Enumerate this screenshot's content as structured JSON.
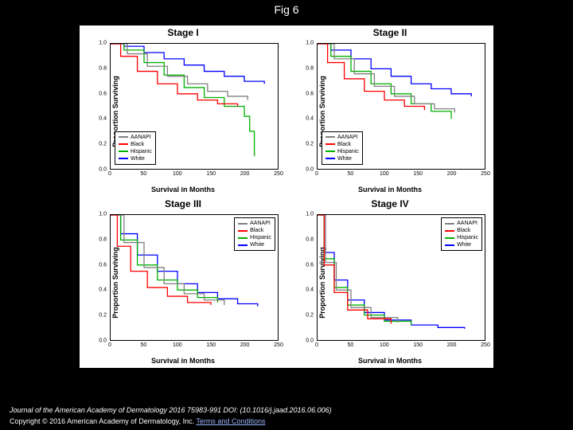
{
  "figure_label": "Fig 6",
  "background_color": "#000000",
  "panel_background": "#ffffff",
  "citation": "Journal of the American Academy of Dermatology 2016 75983-991 DOI: (10.1016/j.jaad.2016.06.006)",
  "copyright_prefix": "Copyright © 2016 American Academy of Dermatology, Inc. ",
  "terms_link_text": "Terms and Conditions",
  "axis": {
    "x_label": "Survival in Months",
    "y_label": "Proportion Surviving",
    "xlim": [
      0,
      250
    ],
    "ylim": [
      0.0,
      1.0
    ],
    "xticks": [
      0,
      50,
      100,
      150,
      200,
      250
    ],
    "yticks": [
      0.0,
      0.2,
      0.4,
      0.6,
      0.8,
      1.0
    ],
    "tick_fontsize": 7,
    "label_fontsize": 9,
    "title_fontsize": 12,
    "line_width": 1.3
  },
  "legend": {
    "items": [
      {
        "label": "AANAPI",
        "color": "#808080"
      },
      {
        "label": "Black",
        "color": "#ff0000"
      },
      {
        "label": "Hispanic",
        "color": "#00b000"
      },
      {
        "label": "White",
        "color": "#0000ff"
      }
    ]
  },
  "panels": [
    {
      "title": "Stage I",
      "legend_pos": "bottom-left",
      "series": [
        {
          "color": "#0000ff",
          "points": [
            [
              0,
              1.0
            ],
            [
              20,
              0.98
            ],
            [
              50,
              0.93
            ],
            [
              80,
              0.88
            ],
            [
              110,
              0.83
            ],
            [
              140,
              0.78
            ],
            [
              170,
              0.74
            ],
            [
              200,
              0.7
            ],
            [
              230,
              0.68
            ]
          ]
        },
        {
          "color": "#00b000",
          "points": [
            [
              0,
              1.0
            ],
            [
              20,
              0.95
            ],
            [
              50,
              0.85
            ],
            [
              80,
              0.75
            ],
            [
              110,
              0.65
            ],
            [
              140,
              0.57
            ],
            [
              170,
              0.5
            ],
            [
              200,
              0.42
            ],
            [
              208,
              0.3
            ],
            [
              215,
              0.1
            ]
          ]
        },
        {
          "color": "#808080",
          "points": [
            [
              0,
              1.0
            ],
            [
              25,
              0.92
            ],
            [
              55,
              0.82
            ],
            [
              85,
              0.74
            ],
            [
              115,
              0.68
            ],
            [
              145,
              0.62
            ],
            [
              175,
              0.58
            ],
            [
              205,
              0.55
            ]
          ]
        },
        {
          "color": "#ff0000",
          "points": [
            [
              0,
              1.0
            ],
            [
              15,
              0.9
            ],
            [
              40,
              0.78
            ],
            [
              70,
              0.68
            ],
            [
              100,
              0.6
            ],
            [
              130,
              0.55
            ],
            [
              160,
              0.52
            ],
            [
              190,
              0.5
            ]
          ]
        }
      ]
    },
    {
      "title": "Stage II",
      "legend_pos": "bottom-left",
      "series": [
        {
          "color": "#0000ff",
          "points": [
            [
              0,
              1.0
            ],
            [
              20,
              0.95
            ],
            [
              50,
              0.88
            ],
            [
              80,
              0.8
            ],
            [
              110,
              0.74
            ],
            [
              140,
              0.68
            ],
            [
              170,
              0.64
            ],
            [
              200,
              0.6
            ],
            [
              230,
              0.58
            ]
          ]
        },
        {
          "color": "#00b000",
          "points": [
            [
              0,
              1.0
            ],
            [
              20,
              0.9
            ],
            [
              50,
              0.78
            ],
            [
              80,
              0.68
            ],
            [
              110,
              0.6
            ],
            [
              140,
              0.52
            ],
            [
              170,
              0.46
            ],
            [
              200,
              0.4
            ]
          ]
        },
        {
          "color": "#808080",
          "points": [
            [
              0,
              1.0
            ],
            [
              25,
              0.88
            ],
            [
              55,
              0.76
            ],
            [
              85,
              0.66
            ],
            [
              115,
              0.58
            ],
            [
              145,
              0.52
            ],
            [
              175,
              0.48
            ],
            [
              205,
              0.45
            ]
          ]
        },
        {
          "color": "#ff0000",
          "points": [
            [
              0,
              1.0
            ],
            [
              15,
              0.85
            ],
            [
              40,
              0.72
            ],
            [
              70,
              0.62
            ],
            [
              100,
              0.55
            ],
            [
              130,
              0.5
            ],
            [
              160,
              0.47
            ]
          ]
        }
      ]
    },
    {
      "title": "Stage III",
      "legend_pos": "top-right",
      "series": [
        {
          "color": "#0000ff",
          "points": [
            [
              0,
              1.0
            ],
            [
              15,
              0.85
            ],
            [
              40,
              0.68
            ],
            [
              70,
              0.55
            ],
            [
              100,
              0.45
            ],
            [
              130,
              0.38
            ],
            [
              160,
              0.33
            ],
            [
              190,
              0.29
            ],
            [
              220,
              0.27
            ]
          ]
        },
        {
          "color": "#00b000",
          "points": [
            [
              0,
              1.0
            ],
            [
              15,
              0.8
            ],
            [
              40,
              0.6
            ],
            [
              70,
              0.48
            ],
            [
              100,
              0.4
            ],
            [
              130,
              0.34
            ],
            [
              160,
              0.3
            ]
          ]
        },
        {
          "color": "#808080",
          "points": [
            [
              0,
              1.0
            ],
            [
              20,
              0.78
            ],
            [
              50,
              0.58
            ],
            [
              80,
              0.45
            ],
            [
              110,
              0.37
            ],
            [
              140,
              0.32
            ],
            [
              170,
              0.28
            ]
          ]
        },
        {
          "color": "#ff0000",
          "points": [
            [
              0,
              1.0
            ],
            [
              10,
              0.75
            ],
            [
              30,
              0.55
            ],
            [
              55,
              0.42
            ],
            [
              85,
              0.35
            ],
            [
              115,
              0.3
            ],
            [
              150,
              0.28
            ]
          ]
        }
      ]
    },
    {
      "title": "Stage IV",
      "legend_pos": "top-right",
      "series": [
        {
          "color": "#0000ff",
          "points": [
            [
              0,
              1.0
            ],
            [
              10,
              0.7
            ],
            [
              25,
              0.48
            ],
            [
              45,
              0.32
            ],
            [
              70,
              0.22
            ],
            [
              100,
              0.16
            ],
            [
              140,
              0.12
            ],
            [
              180,
              0.1
            ],
            [
              220,
              0.09
            ]
          ]
        },
        {
          "color": "#00b000",
          "points": [
            [
              0,
              1.0
            ],
            [
              10,
              0.65
            ],
            [
              25,
              0.42
            ],
            [
              45,
              0.28
            ],
            [
              70,
              0.2
            ],
            [
              100,
              0.15
            ],
            [
              140,
              0.12
            ]
          ]
        },
        {
          "color": "#808080",
          "points": [
            [
              0,
              1.0
            ],
            [
              12,
              0.62
            ],
            [
              28,
              0.4
            ],
            [
              50,
              0.26
            ],
            [
              80,
              0.18
            ],
            [
              120,
              0.14
            ]
          ]
        },
        {
          "color": "#ff0000",
          "points": [
            [
              0,
              1.0
            ],
            [
              10,
              0.6
            ],
            [
              25,
              0.38
            ],
            [
              45,
              0.24
            ],
            [
              75,
              0.17
            ],
            [
              110,
              0.13
            ]
          ]
        }
      ]
    }
  ]
}
